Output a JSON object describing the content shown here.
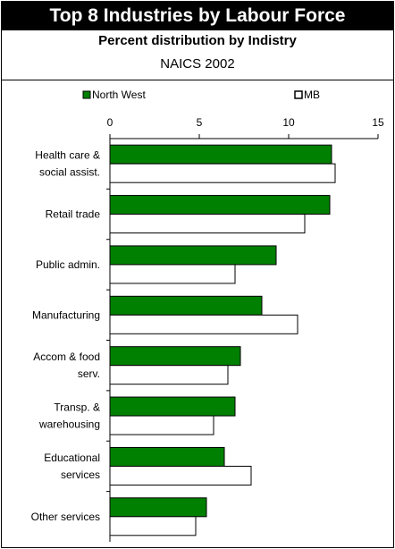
{
  "header": {
    "title": "Top 8 Industries by Labour Force",
    "subtitle": "Percent distribution by Indistry",
    "subtitle2": "NAICS 2002"
  },
  "legend": {
    "series1": "North West",
    "series2": "MB"
  },
  "colors": {
    "series1": "#008000",
    "series2": "#ffffff",
    "outline": "#000000"
  },
  "chart_data": {
    "type": "bar",
    "orientation": "horizontal",
    "title": "Top 8 Industries by Labour Force",
    "subtitle": "Percent distribution by Indistry",
    "categories": [
      [
        "Health care &",
        "social assist."
      ],
      [
        "Retail trade"
      ],
      [
        "Public admin."
      ],
      [
        "Manufacturing"
      ],
      [
        "Accom & food",
        "serv."
      ],
      [
        "Transp. &",
        "warehousing"
      ],
      [
        "Educational",
        "services"
      ],
      [
        "Other services"
      ]
    ],
    "series": [
      {
        "name": "North West",
        "values": [
          12.4,
          12.3,
          9.3,
          8.5,
          7.3,
          7.0,
          6.4,
          5.4
        ]
      },
      {
        "name": "MB",
        "values": [
          12.6,
          10.9,
          7.0,
          10.5,
          6.6,
          5.8,
          7.9,
          4.8
        ]
      }
    ],
    "xlim": [
      0,
      15
    ],
    "xticks": [
      0,
      5,
      10,
      15
    ],
    "legend_position": "top",
    "grid": false
  }
}
